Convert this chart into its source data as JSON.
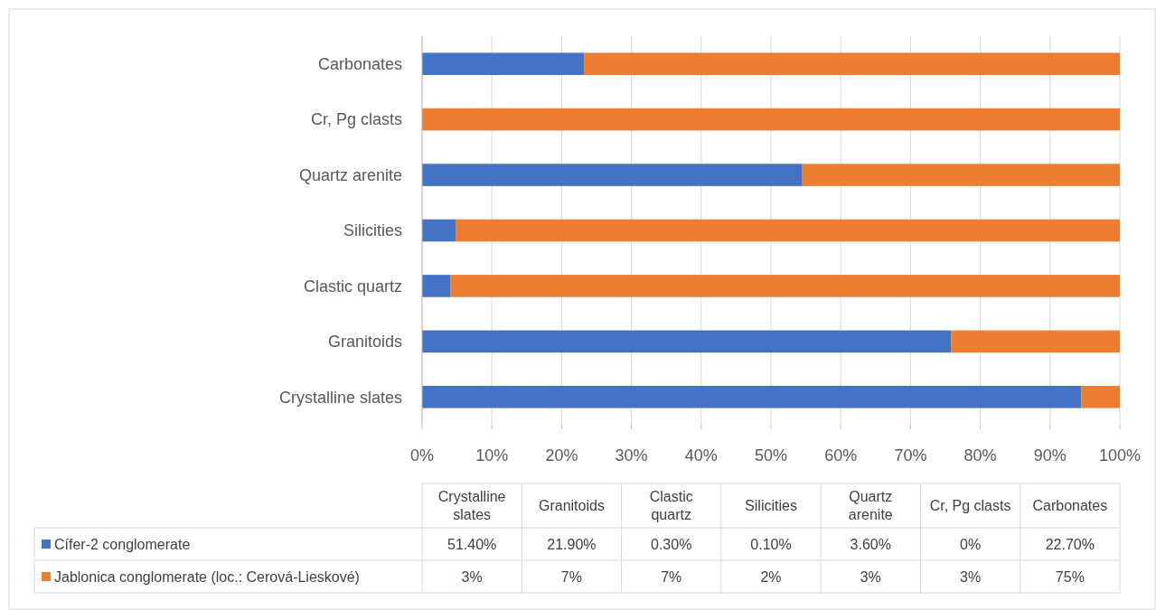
{
  "chart_data": [
    {
      "type": "bar",
      "orientation": "horizontal",
      "stacked": true,
      "categories": [
        "Carbonates",
        "Cr, Pg clasts",
        "Quartz arenite",
        "Silicities",
        "Clastic quartz",
        "Granitoids",
        "Crystalline slates"
      ],
      "series": [
        {
          "name": "Cífer-2 conglomerate",
          "color": "#4472c4",
          "values": [
            23.2,
            0,
            54.5,
            4.8,
            4.1,
            75.8,
            94.5
          ]
        },
        {
          "name": "Jablonica conglomerate (loc.: Cerová-Lieskové)",
          "color": "#ed7d31",
          "values": [
            76.8,
            100,
            45.5,
            95.2,
            95.9,
            24.2,
            5.5
          ]
        }
      ],
      "xlim": [
        0,
        100
      ],
      "xticks": [
        {
          "value": 0,
          "label": "0%"
        },
        {
          "value": 10,
          "label": "10%"
        },
        {
          "value": 20,
          "label": "20%"
        },
        {
          "value": 30,
          "label": "30%"
        },
        {
          "value": 40,
          "label": "40%"
        },
        {
          "value": 50,
          "label": "50%"
        },
        {
          "value": 60,
          "label": "60%"
        },
        {
          "value": 70,
          "label": "70%"
        },
        {
          "value": 80,
          "label": "80%"
        },
        {
          "value": 90,
          "label": "90%"
        },
        {
          "value": 100,
          "label": "100%"
        }
      ],
      "grid": "x",
      "legend": "bottom"
    },
    {
      "type": "other",
      "annotations": [
        "Crystalline slates",
        "Granitoids",
        "Clastic quartz",
        "Silicities",
        "Quartz arenite",
        "Cr, Pg clasts",
        "Carbonates",
        "51.40%",
        "21.90%",
        "0.30%",
        "0.10%",
        "3.60%",
        "0%",
        "22.70%",
        "3%",
        "7%",
        "7%",
        "2%",
        "3%",
        "3%",
        "75%"
      ]
    }
  ]
}
